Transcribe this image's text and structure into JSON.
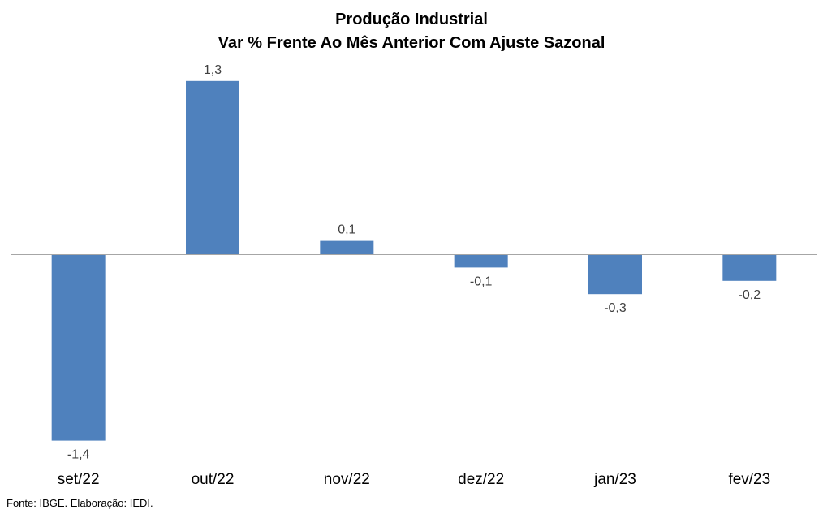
{
  "chart_data": {
    "type": "bar",
    "title": "Produção Industrial",
    "subtitle": "Var % Frente Ao Mês Anterior Com Ajuste Sazonal",
    "categories": [
      "set/22",
      "out/22",
      "nov/22",
      "dez/22",
      "jan/23",
      "fev/23"
    ],
    "values": [
      -1.4,
      1.3,
      0.1,
      -0.1,
      -0.3,
      -0.2
    ],
    "value_labels": [
      "-1,4",
      "1,3",
      "0,1",
      "-0,1",
      "-0,3",
      "-0,2"
    ],
    "bar_color": "#4F81BD",
    "axis_color": "#A6A6A6",
    "grid": false,
    "legend": "none"
  },
  "source": "Fonte: IBGE. Elaboração: IEDI."
}
